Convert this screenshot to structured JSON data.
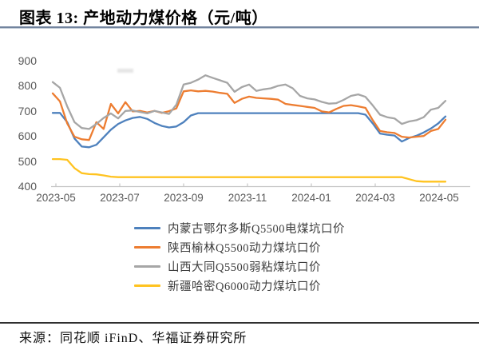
{
  "figure": {
    "title": "图表 13:  产地动力煤价格（元/吨）"
  },
  "source": {
    "label": "来源：同花顺 iFinD、华福证券研究所"
  },
  "chart_data": {
    "type": "line",
    "title": "产地动力煤价格（元/吨）",
    "xlabel": "",
    "ylabel": "",
    "ylim": [
      400,
      900
    ],
    "grid": false,
    "legend_position": "bottom",
    "y_ticks": [
      400,
      500,
      600,
      700,
      800,
      900
    ],
    "y_tick_labels": [
      "900",
      "800",
      "700",
      "600",
      "500",
      "400"
    ],
    "x_tick_labels": [
      "2023-05",
      "2023-07",
      "2023-09",
      "2023-11",
      "2024-01",
      "2024-03",
      "2024-05"
    ],
    "x": [
      "2023-04-28",
      "2023-05-05",
      "2023-05-12",
      "2023-05-19",
      "2023-05-26",
      "2023-06-02",
      "2023-06-09",
      "2023-06-16",
      "2023-06-23",
      "2023-06-30",
      "2023-07-07",
      "2023-07-14",
      "2023-07-21",
      "2023-07-28",
      "2023-08-04",
      "2023-08-11",
      "2023-08-18",
      "2023-08-25",
      "2023-09-01",
      "2023-09-08",
      "2023-09-15",
      "2023-09-22",
      "2023-09-29",
      "2023-10-06",
      "2023-10-13",
      "2023-10-20",
      "2023-10-27",
      "2023-11-03",
      "2023-11-10",
      "2023-11-17",
      "2023-11-24",
      "2023-12-01",
      "2023-12-08",
      "2023-12-15",
      "2023-12-22",
      "2023-12-29",
      "2024-01-05",
      "2024-01-12",
      "2024-01-19",
      "2024-01-26",
      "2024-02-02",
      "2024-02-09",
      "2024-02-16",
      "2024-02-23",
      "2024-03-01",
      "2024-03-08",
      "2024-03-15",
      "2024-03-22",
      "2024-03-29",
      "2024-04-05",
      "2024-04-12",
      "2024-04-19",
      "2024-04-26",
      "2024-05-03",
      "2024-05-10"
    ],
    "series": [
      {
        "name": "内蒙古鄂尔多斯Q5500电煤坑口价",
        "color": "#4E81BD",
        "values": [
          692,
          692,
          655,
          590,
          558,
          555,
          565,
          595,
          625,
          648,
          662,
          672,
          676,
          668,
          652,
          640,
          634,
          638,
          655,
          682,
          691,
          691,
          691,
          691,
          691,
          691,
          691,
          691,
          691,
          691,
          691,
          691,
          691,
          691,
          691,
          691,
          691,
          691,
          691,
          691,
          691,
          691,
          691,
          685,
          650,
          610,
          605,
          602,
          578,
          592,
          601,
          614,
          630,
          650,
          678
        ]
      },
      {
        "name": "陕西榆林Q5500动力煤坑口价",
        "color": "#ED7D31",
        "values": [
          770,
          738,
          650,
          597,
          587,
          584,
          655,
          628,
          728,
          690,
          735,
          698,
          700,
          694,
          700,
          692,
          699,
          710,
          778,
          782,
          778,
          780,
          777,
          772,
          768,
          732,
          748,
          757,
          752,
          750,
          748,
          745,
          728,
          724,
          720,
          716,
          712,
          698,
          694,
          708,
          720,
          723,
          718,
          712,
          663,
          620,
          615,
          612,
          597,
          594,
          597,
          600,
          620,
          628,
          665
        ]
      },
      {
        "name": "山西大同Q5500弱粘煤坑口价",
        "color": "#A6A6A6",
        "values": [
          815,
          792,
          718,
          655,
          632,
          628,
          648,
          672,
          690,
          670,
          700,
          702,
          696,
          690,
          700,
          694,
          688,
          725,
          805,
          812,
          825,
          842,
          832,
          822,
          812,
          776,
          795,
          805,
          780,
          786,
          790,
          800,
          805,
          790,
          760,
          750,
          746,
          736,
          729,
          731,
          744,
          760,
          766,
          756,
          722,
          685,
          675,
          670,
          648,
          658,
          663,
          675,
          705,
          712,
          740
        ]
      },
      {
        "name": "新疆哈密Q6000动力煤坑口价",
        "color": "#FFC320",
        "values": [
          508,
          508,
          505,
          472,
          452,
          448,
          447,
          443,
          438,
          436,
          436,
          436,
          436,
          436,
          436,
          436,
          436,
          436,
          436,
          436,
          436,
          436,
          436,
          436,
          436,
          436,
          436,
          436,
          436,
          436,
          436,
          436,
          436,
          436,
          436,
          436,
          436,
          436,
          436,
          436,
          436,
          436,
          436,
          436,
          436,
          436,
          436,
          436,
          436,
          428,
          420,
          418,
          418,
          418,
          418
        ]
      }
    ]
  }
}
